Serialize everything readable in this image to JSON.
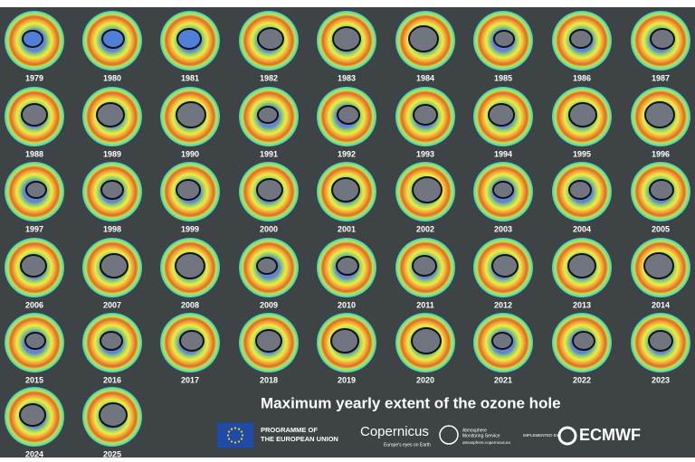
{
  "title": "Maximum yearly extent of the ozone hole",
  "years": [
    "1979",
    "1980",
    "1981",
    "1982",
    "1983",
    "1984",
    "1985",
    "1986",
    "1987",
    "1988",
    "1989",
    "1990",
    "1991",
    "1992",
    "1993",
    "1994",
    "1995",
    "1996",
    "1997",
    "1998",
    "1999",
    "2000",
    "2001",
    "2002",
    "2003",
    "2004",
    "2005",
    "2006",
    "2007",
    "2008",
    "2009",
    "2010",
    "2011",
    "2012",
    "2013",
    "2014",
    "2015",
    "2016",
    "2017",
    "2018",
    "2019",
    "2020",
    "2021",
    "2022",
    "2023",
    "2024",
    "2025"
  ],
  "logos": {
    "eu_line1": "PROGRAMME OF",
    "eu_line2": "THE EUROPEAN UNION",
    "copernicus": "Copernicus",
    "copernicus_tagline": "Europe's eyes on Earth",
    "cams_line1": "Atmosphere",
    "cams_line2": "Monitoring Service",
    "cams_url": "atmosphere.copernicus.eu",
    "implemented_by": "IMPLEMENTED BY",
    "ecmwf": "ECMWF"
  }
}
